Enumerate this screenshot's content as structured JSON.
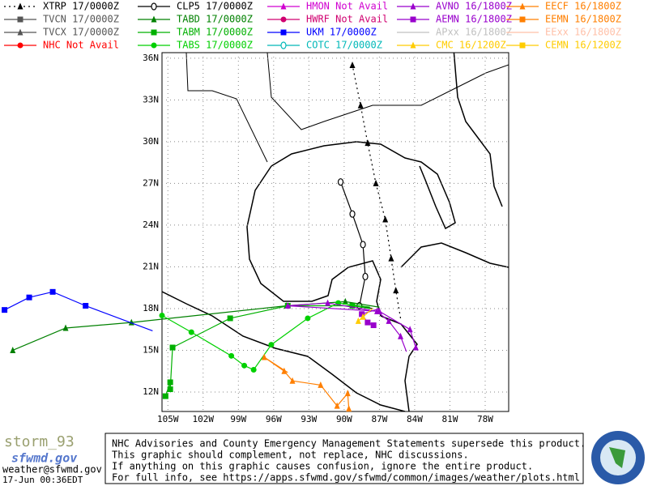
{
  "models": [
    {
      "label": "XTRP 17/0000Z",
      "color": "#000000",
      "marker": "triangle",
      "dash": true,
      "track": {
        "lon": [
          -85.2,
          -85.6,
          -86.0,
          -86.5,
          -87.3,
          -88.0,
          -88.6,
          -89.3
        ],
        "lat": [
          17.3,
          19.3,
          21.6,
          24.4,
          27.0,
          29.9,
          32.6,
          35.5
        ]
      }
    },
    {
      "label": "TVCN 17/0000Z",
      "color": "#555555",
      "marker": "square"
    },
    {
      "label": "TVCX 17/0000Z",
      "color": "#555555",
      "marker": "triangle"
    },
    {
      "label": "NHC Not Avail",
      "color": "#ff0000",
      "marker": "circle"
    },
    {
      "label": "CLP5 17/0000Z",
      "color": "#000000",
      "marker": "ring",
      "track": {
        "lon": [
          -87.6,
          -88.7,
          -88.2,
          -88.4,
          -89.3,
          -90.3
        ],
        "lat": [
          18.0,
          18.2,
          20.3,
          22.6,
          24.8,
          27.1
        ]
      }
    },
    {
      "label": "TABD 17/0000Z",
      "color": "#008000",
      "marker": "triangle",
      "track": {
        "lon": [
          -87.0,
          -89.9,
          -94.9,
          -108.1,
          -113.7,
          -118.2
        ],
        "lat": [
          18.1,
          18.5,
          18.2,
          17.0,
          16.6,
          15.0
        ]
      }
    },
    {
      "label": "TABM 17/0000Z",
      "color": "#00b000",
      "marker": "square",
      "track": {
        "lon": [
          -87.8,
          -89.3,
          -94.8,
          -99.7,
          -104.6,
          -104.8,
          -104.8,
          -105.2
        ],
        "lat": [
          18.0,
          18.2,
          18.2,
          17.3,
          15.2,
          12.2,
          12.7,
          11.7
        ]
      }
    },
    {
      "label": "TABS 17/0000Z",
      "color": "#00d000",
      "marker": "circle",
      "track": {
        "lon": [
          -87.8,
          -90.5,
          -93.1,
          -96.2,
          -97.7,
          -98.5,
          -99.6,
          -103.0,
          -105.5
        ],
        "lat": [
          18.1,
          18.4,
          17.3,
          15.4,
          13.6,
          13.9,
          14.6,
          16.3,
          17.5
        ]
      }
    },
    {
      "label": "HMON Not Avail",
      "color": "#d000d0",
      "marker": "triangle"
    },
    {
      "label": "HWRF Not Avail",
      "color": "#d00070",
      "marker": "circle"
    },
    {
      "label": "UKM  17/0000Z",
      "color": "#0000ff",
      "marker": "square",
      "track": {
        "lon": [
          -106.3,
          -112.0,
          -114.8,
          -116.8,
          -118.9
        ],
        "lat": [
          16.4,
          18.2,
          19.2,
          18.8,
          17.9
        ]
      }
    },
    {
      "label": "COTC 17/0000Z",
      "color": "#00b8b8",
      "marker": "ring"
    },
    {
      "label": "AVNO 16/1800Z",
      "color": "#9900cc",
      "marker": "triangle",
      "track": {
        "lon": [
          -84.7,
          -85.2,
          -86.2,
          -87.2,
          -91.4,
          -94.8,
          -87.0,
          -84.4,
          -83.9
        ],
        "lat": [
          14.9,
          16.0,
          17.1,
          17.8,
          18.4,
          18.2,
          17.8,
          16.5,
          15.2
        ]
      }
    },
    {
      "label": "AEMN 16/1800Z",
      "color": "#9900cc",
      "marker": "square",
      "track": {
        "lon": [
          -87.0,
          -88.5,
          -88.0,
          -87.5
        ],
        "lat": [
          18.0,
          17.6,
          17.0,
          16.8
        ]
      }
    },
    {
      "label": "APxx 16/1800Z",
      "color": "#c0c0c0",
      "marker": "line"
    },
    {
      "label": "CMC  16/1200Z",
      "color": "#ffcc00",
      "marker": "triangle",
      "track": {
        "lon": [
          -87.6,
          -88.4,
          -88.8
        ],
        "lat": [
          18.0,
          17.4,
          17.1
        ]
      }
    },
    {
      "label": "EECF 16/1800Z",
      "color": "#ff7f00",
      "marker": "triangle",
      "track": {
        "lon": [
          -94.8,
          -96.8,
          -95.1,
          -94.4,
          -92.0,
          -90.6,
          -89.7,
          -89.6
        ],
        "lat": [
          13.4,
          14.5,
          13.5,
          12.8,
          12.5,
          11.0,
          11.9,
          10.8
        ]
      }
    },
    {
      "label": "EEMN 16/1800Z",
      "color": "#ff7f00",
      "marker": "square"
    },
    {
      "label": "EExx 16/1800Z",
      "color": "#ffc0a8",
      "marker": "line"
    },
    {
      "label": "CEMN 16/1200Z",
      "color": "#ffcc00",
      "marker": "square"
    }
  ],
  "map": {
    "lon_range": [
      -105.5,
      -76
    ],
    "lat_range": [
      10.6,
      36.4
    ],
    "lon_ticks": [
      {
        "value": -105,
        "label": "105W"
      },
      {
        "value": -102,
        "label": "102W"
      },
      {
        "value": -99,
        "label": "99W"
      },
      {
        "value": -96,
        "label": "96W"
      },
      {
        "value": -93,
        "label": "93W"
      },
      {
        "value": -90,
        "label": "90W"
      },
      {
        "value": -87,
        "label": "87W"
      },
      {
        "value": -84,
        "label": "84W"
      },
      {
        "value": -81,
        "label": "81W"
      },
      {
        "value": -78,
        "label": "78W"
      }
    ],
    "lat_ticks": [
      {
        "value": 36,
        "label": "36N"
      },
      {
        "value": 33,
        "label": "33N"
      },
      {
        "value": 30,
        "label": "30N"
      },
      {
        "value": 27,
        "label": "27N"
      },
      {
        "value": 24,
        "label": "24N"
      },
      {
        "value": 21,
        "label": "21N"
      },
      {
        "value": 18,
        "label": "18N"
      },
      {
        "value": 15,
        "label": "15N"
      },
      {
        "value": 12,
        "label": "12N"
      }
    ]
  },
  "footer": {
    "logo": "storm_93",
    "site": "sfwmd.gov",
    "email": "weather@sfwmd.gov",
    "timestamp": "17-Jun 00:36EDT",
    "disclaimer": [
      "NHC Advisories and County Emergency Management Statements supersede this product.",
      "This graphic should complement, not replace, NHC discussions.",
      "If anything on this graphic causes confusion, ignore the entire product.",
      "For full info, see  https://apps.sfwmd.gov/sfwmd/common/images/weather/plots.html"
    ]
  }
}
